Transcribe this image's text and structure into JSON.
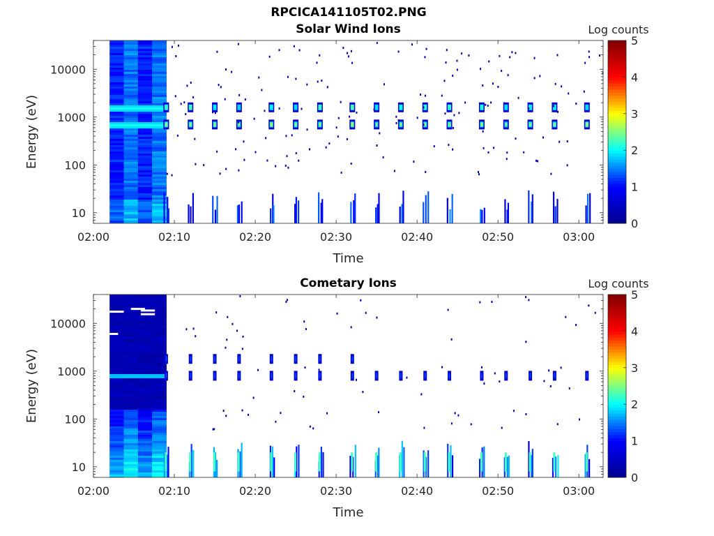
{
  "figure": {
    "title": "RPCICA141105T02.PNG"
  },
  "chart_data": [
    {
      "type": "heatmap",
      "title": "Solar Wind Ions",
      "xlabel": "Time",
      "ylabel": "Energy (eV)",
      "x_ticks": [
        "02:00",
        "02:10",
        "02:20",
        "02:30",
        "02:40",
        "02:50",
        "03:00"
      ],
      "xlim": [
        "02:00",
        "03:03"
      ],
      "y_scale": "log",
      "y_ticks": [
        "10",
        "100",
        "1000",
        "10000"
      ],
      "ylim": [
        6,
        40000
      ],
      "colorbar": {
        "label": "Log counts",
        "ticks": [
          "0",
          "1",
          "2",
          "3",
          "4",
          "5"
        ],
        "range": [
          0,
          5
        ]
      },
      "colormap": [
        "#00008f",
        "#0000ff",
        "#00ffff",
        "#ffff00",
        "#ff0000",
        "#800000"
      ],
      "dense_block": {
        "start": "02:02",
        "end": "02:09"
      },
      "peak_bands_eV": [
        700,
        1600
      ],
      "bursts": [
        {
          "time": "02:09",
          "bands": [
            10,
            700,
            1600
          ]
        },
        {
          "time": "02:12",
          "bands": [
            10,
            700,
            1600
          ]
        },
        {
          "time": "02:15",
          "bands": [
            10,
            700,
            1600
          ]
        },
        {
          "time": "02:18",
          "bands": [
            10,
            700,
            1600
          ]
        },
        {
          "time": "02:22",
          "bands": [
            10,
            700,
            1600
          ]
        },
        {
          "time": "02:25",
          "bands": [
            10,
            700,
            1600
          ]
        },
        {
          "time": "02:28",
          "bands": [
            10,
            700,
            1600
          ]
        },
        {
          "time": "02:32",
          "bands": [
            10,
            700,
            1600
          ]
        },
        {
          "time": "02:35",
          "bands": [
            10,
            700,
            1600
          ]
        },
        {
          "time": "02:38",
          "bands": [
            10,
            700,
            1600
          ]
        },
        {
          "time": "02:41",
          "bands": [
            10,
            700,
            1600
          ]
        },
        {
          "time": "02:44",
          "bands": [
            10,
            700,
            1600
          ]
        },
        {
          "time": "02:48",
          "bands": [
            10,
            700,
            1600
          ]
        },
        {
          "time": "02:51",
          "bands": [
            10,
            700,
            1600
          ]
        },
        {
          "time": "02:54",
          "bands": [
            10,
            700,
            1600
          ]
        },
        {
          "time": "02:57",
          "bands": [
            10,
            700,
            1600
          ]
        },
        {
          "time": "03:01",
          "bands": [
            10,
            700,
            1600
          ]
        }
      ]
    },
    {
      "type": "heatmap",
      "title": "Cometary Ions",
      "xlabel": "Time",
      "ylabel": "Energy (eV)",
      "x_ticks": [
        "02:00",
        "02:10",
        "02:20",
        "02:30",
        "02:40",
        "02:50",
        "03:00"
      ],
      "xlim": [
        "02:00",
        "03:03"
      ],
      "y_scale": "log",
      "y_ticks": [
        "10",
        "100",
        "1000",
        "10000"
      ],
      "ylim": [
        6,
        40000
      ],
      "colorbar": {
        "label": "Log counts",
        "ticks": [
          "0",
          "1",
          "2",
          "3",
          "4",
          "5"
        ],
        "range": [
          0,
          5
        ]
      },
      "colormap": [
        "#00008f",
        "#0000ff",
        "#00ffff",
        "#ffff00",
        "#ff0000",
        "#800000"
      ],
      "dense_block": {
        "start": "02:02",
        "end": "02:09"
      },
      "peak_bands_eV": [
        10,
        800
      ],
      "bursts": [
        {
          "time": "02:09",
          "bands": [
            10,
            800,
            1800
          ]
        },
        {
          "time": "02:12",
          "bands": [
            10,
            800,
            1800
          ]
        },
        {
          "time": "02:15",
          "bands": [
            10,
            800,
            1800
          ]
        },
        {
          "time": "02:18",
          "bands": [
            10,
            800,
            1800
          ]
        },
        {
          "time": "02:22",
          "bands": [
            10,
            800,
            1800
          ]
        },
        {
          "time": "02:25",
          "bands": [
            10,
            800,
            1800
          ]
        },
        {
          "time": "02:28",
          "bands": [
            10,
            800,
            1800
          ]
        },
        {
          "time": "02:32",
          "bands": [
            10,
            800,
            1800
          ]
        },
        {
          "time": "02:35",
          "bands": [
            10,
            800
          ]
        },
        {
          "time": "02:38",
          "bands": [
            10,
            800
          ]
        },
        {
          "time": "02:41",
          "bands": [
            10,
            800
          ]
        },
        {
          "time": "02:44",
          "bands": [
            10,
            800
          ]
        },
        {
          "time": "02:48",
          "bands": [
            10,
            800
          ]
        },
        {
          "time": "02:51",
          "bands": [
            10,
            800
          ]
        },
        {
          "time": "02:54",
          "bands": [
            10,
            800
          ]
        },
        {
          "time": "02:57",
          "bands": [
            10,
            800
          ]
        },
        {
          "time": "03:01",
          "bands": [
            10,
            800
          ]
        }
      ]
    }
  ]
}
